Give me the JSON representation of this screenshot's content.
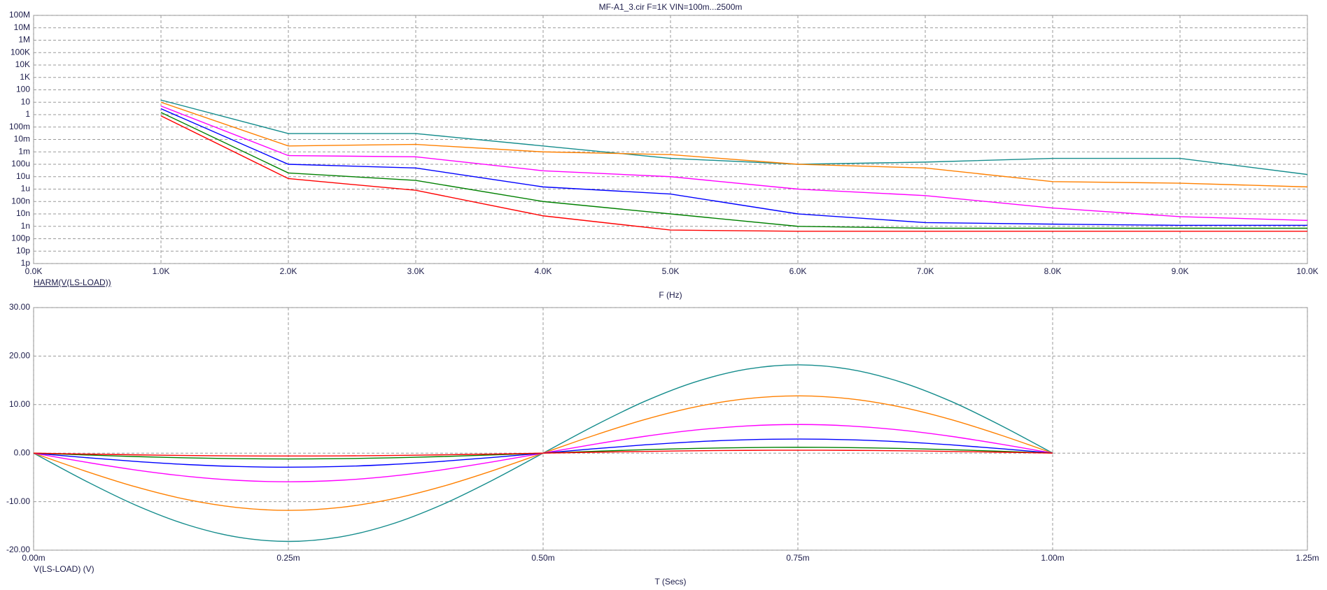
{
  "chart_data": [
    {
      "type": "line",
      "title": "MF-A1_3.cir F=1K VIN=100m...2500m",
      "x_label": "F (Hz)",
      "y_label": "HARM(V(LS-LOAD))",
      "y_label_color": "#2233bb",
      "y_label_underline": true,
      "log_y": true,
      "grid": true,
      "x": [
        1000,
        2000,
        3000,
        4000,
        5000,
        6000,
        7000,
        8000,
        9000,
        10000
      ],
      "series": [
        {
          "color": "#148c8c",
          "values": [
            15,
            0.03,
            0.03,
            0.003,
            0.0003,
            0.0001,
            0.00015,
            0.0003,
            0.0003,
            1.5e-05
          ]
        },
        {
          "color": "#ff8000",
          "values": [
            10,
            0.003,
            0.004,
            0.001,
            0.0006,
            0.0001,
            5e-05,
            4e-06,
            3e-06,
            1.5e-06
          ]
        },
        {
          "color": "#ff00ff",
          "values": [
            5,
            0.0005,
            0.0004,
            3e-05,
            1e-05,
            1e-06,
            3e-07,
            3e-08,
            6e-09,
            3e-09
          ]
        },
        {
          "color": "#0000ff",
          "values": [
            3,
            0.0001,
            5e-05,
            1.5e-06,
            4e-07,
            1e-08,
            2e-09,
            1.5e-09,
            1.2e-09,
            1.2e-09
          ]
        },
        {
          "color": "#008000",
          "values": [
            1.5,
            2e-05,
            5e-06,
            1e-07,
            1e-08,
            1e-09,
            7e-10,
            7e-10,
            7e-10,
            7e-10
          ]
        },
        {
          "color": "#ff0000",
          "values": [
            0.8,
            7e-06,
            8e-07,
            7e-09,
            5e-10,
            4e-10,
            4e-10,
            4e-10,
            4e-10,
            4e-10
          ]
        }
      ],
      "xlim": [
        0,
        10000
      ],
      "xticks": [
        {
          "value": 0,
          "label": "0.0K"
        },
        {
          "value": 1000,
          "label": "1.0K"
        },
        {
          "value": 2000,
          "label": "2.0K"
        },
        {
          "value": 3000,
          "label": "3.0K"
        },
        {
          "value": 4000,
          "label": "4.0K"
        },
        {
          "value": 5000,
          "label": "5.0K"
        },
        {
          "value": 6000,
          "label": "6.0K"
        },
        {
          "value": 7000,
          "label": "7.0K"
        },
        {
          "value": 8000,
          "label": "8.0K"
        },
        {
          "value": 9000,
          "label": "9.0K"
        },
        {
          "value": 10000,
          "label": "10.0K"
        }
      ],
      "ylim": [
        1e-12,
        100000000
      ],
      "yticks": [
        {
          "value": 100000000,
          "label": "100M"
        },
        {
          "value": 10000000,
          "label": "10M"
        },
        {
          "value": 1000000,
          "label": "1M"
        },
        {
          "value": 100000,
          "label": "100K"
        },
        {
          "value": 10000,
          "label": "10K"
        },
        {
          "value": 1000,
          "label": "1K"
        },
        {
          "value": 100,
          "label": "100"
        },
        {
          "value": 10,
          "label": "10"
        },
        {
          "value": 1,
          "label": "1"
        },
        {
          "value": 0.1,
          "label": "100m"
        },
        {
          "value": 0.01,
          "label": "10m"
        },
        {
          "value": 0.001,
          "label": "1m"
        },
        {
          "value": 0.0001,
          "label": "100u"
        },
        {
          "value": 1e-05,
          "label": "10u"
        },
        {
          "value": 1e-06,
          "label": "1u"
        },
        {
          "value": 1e-07,
          "label": "100n"
        },
        {
          "value": 1e-08,
          "label": "10n"
        },
        {
          "value": 1e-09,
          "label": "1n"
        },
        {
          "value": 1e-10,
          "label": "100p"
        },
        {
          "value": 1e-11,
          "label": "10p"
        },
        {
          "value": 1e-12,
          "label": "1p"
        }
      ]
    },
    {
      "type": "line",
      "x_label": "T (Secs)",
      "y_label": "V(LS-LOAD) (V)",
      "y_label_color": "#ee2222",
      "grid": true,
      "smooth": true,
      "x": [
        0,
        5e-05,
        0.0001,
        0.00015,
        0.0002,
        0.00025,
        0.0003,
        0.00035,
        0.0004,
        0.00045,
        0.0005,
        0.00055,
        0.0006,
        0.00065,
        0.0007,
        0.00075,
        0.0008,
        0.00085,
        0.0009,
        0.00095,
        0.001
      ],
      "series": [
        {
          "color": "#148c8c",
          "values": [
            0,
            -5.62,
            -10.7,
            -14.72,
            -17.31,
            -18.2,
            -17.31,
            -14.72,
            -10.7,
            -5.62,
            0,
            5.62,
            10.7,
            14.72,
            17.31,
            18.2,
            17.31,
            14.72,
            10.7,
            5.62,
            0
          ]
        },
        {
          "color": "#ff8000",
          "values": [
            0,
            -3.65,
            -6.94,
            -9.55,
            -11.22,
            -11.8,
            -11.22,
            -9.55,
            -6.94,
            -3.65,
            0,
            3.65,
            6.94,
            9.55,
            11.22,
            11.8,
            11.22,
            9.55,
            6.94,
            3.65,
            0
          ]
        },
        {
          "color": "#ff00ff",
          "values": [
            0,
            -1.82,
            -3.47,
            -4.77,
            -5.61,
            -5.9,
            -5.61,
            -4.77,
            -3.47,
            -1.82,
            0,
            1.82,
            3.47,
            4.77,
            5.61,
            5.9,
            5.61,
            4.77,
            3.47,
            1.82,
            0
          ]
        },
        {
          "color": "#0000ff",
          "values": [
            0,
            -0.9,
            -1.71,
            -2.35,
            -2.76,
            -2.9,
            -2.76,
            -2.35,
            -1.71,
            -0.9,
            0,
            0.9,
            1.71,
            2.35,
            2.76,
            2.9,
            2.76,
            2.35,
            1.71,
            0.9,
            0
          ]
        },
        {
          "color": "#008000",
          "values": [
            0,
            -0.37,
            -0.71,
            -0.97,
            -1.14,
            -1.2,
            -1.14,
            -0.97,
            -0.71,
            -0.37,
            0,
            0.37,
            0.71,
            0.97,
            1.14,
            1.2,
            1.14,
            0.97,
            0.71,
            0.37,
            0
          ]
        },
        {
          "color": "#ff0000",
          "values": [
            0,
            -0.19,
            -0.35,
            -0.49,
            -0.57,
            -0.6,
            -0.57,
            -0.49,
            -0.35,
            -0.19,
            0,
            0.19,
            0.35,
            0.49,
            0.57,
            0.6,
            0.57,
            0.49,
            0.35,
            0.19,
            0
          ]
        }
      ],
      "xlim": [
        0,
        0.00125
      ],
      "xticks": [
        {
          "value": 0,
          "label": "0.00m"
        },
        {
          "value": 0.00025,
          "label": "0.25m"
        },
        {
          "value": 0.0005,
          "label": "0.50m"
        },
        {
          "value": 0.00075,
          "label": "0.75m"
        },
        {
          "value": 0.001,
          "label": "1.00m"
        },
        {
          "value": 0.00125,
          "label": "1.25m"
        }
      ],
      "ylim": [
        -20,
        30
      ],
      "yticks": [
        {
          "value": -20,
          "label": "-20.00"
        },
        {
          "value": -10,
          "label": "-10.00"
        },
        {
          "value": 0,
          "label": "0.00"
        },
        {
          "value": 10,
          "label": "10.00"
        },
        {
          "value": 20,
          "label": "20.00"
        },
        {
          "value": 30,
          "label": "30.00"
        }
      ]
    }
  ]
}
